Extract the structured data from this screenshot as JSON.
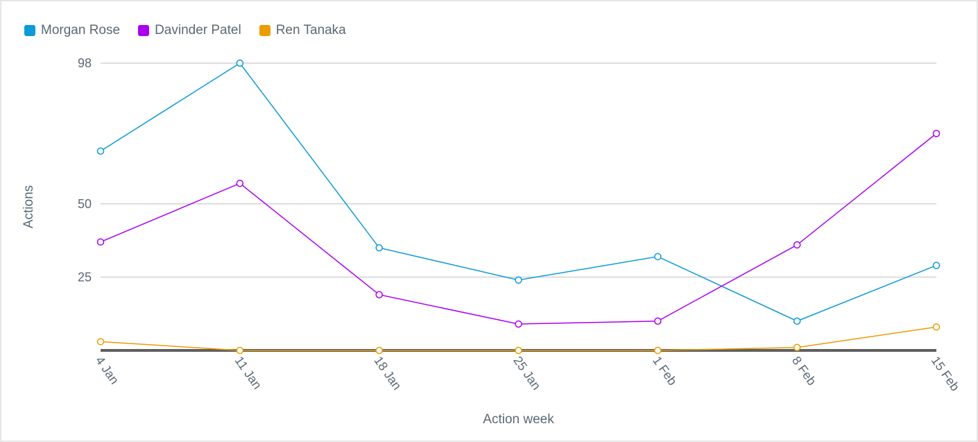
{
  "chart_data": {
    "type": "line",
    "title": "",
    "xlabel": "Action week",
    "ylabel": "Actions",
    "categories": [
      "4 Jan",
      "11 Jan",
      "18 Jan",
      "25 Jan",
      "1 Feb",
      "8 Feb",
      "15 Feb"
    ],
    "y_ticks": [
      "98",
      "50",
      "25"
    ],
    "ylim": [
      0,
      98
    ],
    "grid": true,
    "legend_position": "top-left",
    "series": [
      {
        "name": "Morgan Rose",
        "color": "#0e9ad6",
        "values": [
          68,
          98,
          35,
          24,
          32,
          10,
          29
        ]
      },
      {
        "name": "Davinder Patel",
        "color": "#aa00ee",
        "values": [
          37,
          57,
          19,
          9,
          10,
          36,
          74
        ]
      },
      {
        "name": "Ren Tanaka",
        "color": "#eb9c00",
        "values": [
          3,
          0,
          0,
          0,
          0,
          1,
          8
        ]
      }
    ]
  }
}
